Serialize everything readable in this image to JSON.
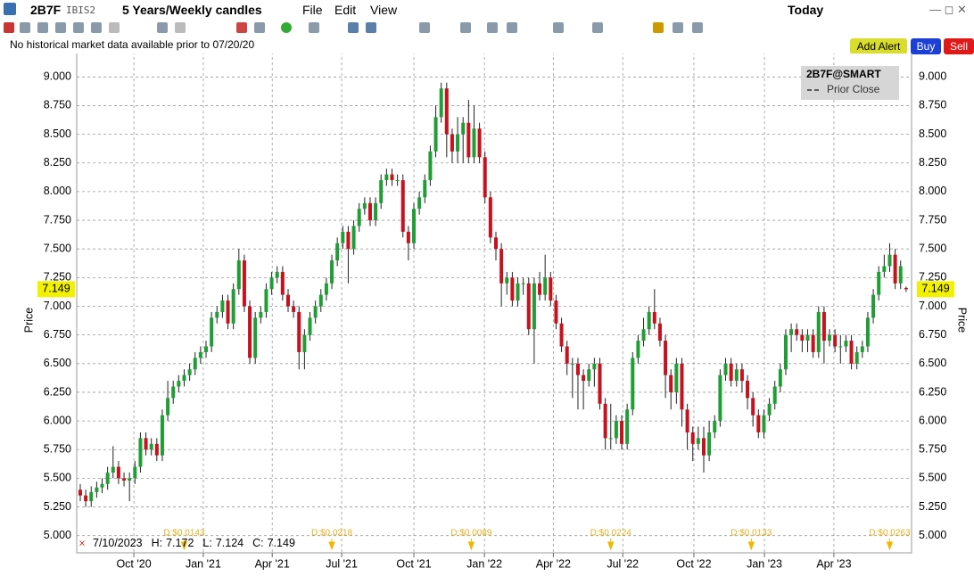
{
  "toolbar": {
    "symbol": "2B7F",
    "exchange": "IBIS2",
    "period": "5 Years/Weekly candles",
    "menus": [
      "File",
      "Edit",
      "View"
    ],
    "range": "Today",
    "buttons": {
      "alert": "Add Alert",
      "buy": "Buy",
      "sell": "Sell"
    }
  },
  "notice": "No historical market data available prior to 07/20/20",
  "chart_data": {
    "type": "candlestick",
    "y_label": "Price",
    "legend": {
      "series": "2B7F@SMART",
      "prior_close": "Prior Close"
    },
    "info": {
      "date": "7/10/2023",
      "h": "H:",
      "l": "L:",
      "c": "C:"
    },
    "colors": {
      "up": "#1f9e35",
      "down": "#c8101e",
      "wick": "#222222"
    },
    "grid": true,
    "ylim": [
      4.85,
      9.22
    ],
    "yticks": [
      {
        "value": 5,
        "label": "5.000"
      },
      {
        "value": 5.25,
        "label": "5.250"
      },
      {
        "value": 5.5,
        "label": "5.500"
      },
      {
        "value": 5.75,
        "label": "5.750"
      },
      {
        "value": 6,
        "label": "6.000"
      },
      {
        "value": 6.25,
        "label": "6.250"
      },
      {
        "value": 6.5,
        "label": "6.500"
      },
      {
        "value": 6.75,
        "label": "6.750"
      },
      {
        "value": 7,
        "label": "7.000"
      },
      {
        "value": 7.25,
        "label": "7.250"
      },
      {
        "value": 7.5,
        "label": "7.500"
      },
      {
        "value": 7.75,
        "label": "7.750"
      },
      {
        "value": 8,
        "label": "8.000"
      },
      {
        "value": 8.25,
        "label": "8.250"
      },
      {
        "value": 8.5,
        "label": "8.500"
      },
      {
        "value": 8.75,
        "label": "8.750"
      },
      {
        "value": 9,
        "label": "9.000"
      }
    ],
    "xlim": [
      -0.65,
      152
    ],
    "xticks": [
      {
        "value": 9.8,
        "label": "Oct '20"
      },
      {
        "value": 22.5,
        "label": "Jan '21"
      },
      {
        "value": 35.1,
        "label": "Apr '21"
      },
      {
        "value": 47.8,
        "label": "Jul '21"
      },
      {
        "value": 61,
        "label": "Oct '21"
      },
      {
        "value": 73.9,
        "label": "Jan '22"
      },
      {
        "value": 86.5,
        "label": "Apr '22"
      },
      {
        "value": 99.2,
        "label": "Jul '22"
      },
      {
        "value": 112.2,
        "label": "Oct '22"
      },
      {
        "value": 125.1,
        "label": "Jan '23"
      },
      {
        "value": 137.8,
        "label": "Apr '23"
      }
    ],
    "dividends": [
      {
        "x": 19,
        "label": "D:$0.0143"
      },
      {
        "x": 46,
        "label": "D:$0.0218"
      },
      {
        "x": 71.5,
        "label": "D:$0.0089"
      },
      {
        "x": 97,
        "label": "D:$0.0224"
      },
      {
        "x": 122.7,
        "label": "D:$0.0133"
      },
      {
        "x": 148,
        "label": "D:$0.0263"
      }
    ],
    "open": [
      5.4,
      5.35,
      5.3,
      5.38,
      5.42,
      5.45,
      5.55,
      5.6,
      5.5,
      5.48,
      5.5,
      5.6,
      5.85,
      5.75,
      5.8,
      5.7,
      6.05,
      6.2,
      6.3,
      6.35,
      6.4,
      6.45,
      6.55,
      6.6,
      6.65,
      6.9,
      6.95,
      7.05,
      6.85,
      7.15,
      7.4,
      7.0,
      6.55,
      6.9,
      6.95,
      7.15,
      7.25,
      7.3,
      7.1,
      7.0,
      6.95,
      6.6,
      6.75,
      6.9,
      7.0,
      7.1,
      7.2,
      7.4,
      7.55,
      7.65,
      7.5,
      7.7,
      7.85,
      7.9,
      7.75,
      7.9,
      8.1,
      8.15,
      8.1,
      8.1,
      7.65,
      7.55,
      7.85,
      7.95,
      8.1,
      8.35,
      8.65,
      8.9,
      8.5,
      8.35,
      8.5,
      8.6,
      8.3,
      8.55,
      8.3,
      7.95,
      7.6,
      7.5,
      7.2,
      7.25,
      7.05,
      7.2,
      7.2,
      6.8,
      7.2,
      7.1,
      7.25,
      7.05,
      6.85,
      6.65,
      6.5,
      6.5,
      6.4,
      6.35,
      6.45,
      6.5,
      6.15,
      5.85,
      5.85,
      6.0,
      5.8,
      6.1,
      6.55,
      6.7,
      6.8,
      6.95,
      6.85,
      6.7,
      6.4,
      6.25,
      6.5,
      6.1,
      5.9,
      5.8,
      5.85,
      5.7,
      5.9,
      6.0,
      6.4,
      6.5,
      6.35,
      6.45,
      6.35,
      6.2,
      6.05,
      5.9,
      6.05,
      6.15,
      6.3,
      6.45,
      6.75,
      6.8,
      6.75,
      6.7,
      6.75,
      6.6,
      6.95,
      6.7,
      6.75,
      6.65,
      6.65,
      6.7,
      6.5,
      6.6,
      6.65,
      6.9,
      7.1,
      7.3,
      7.35,
      7.45,
      7.2,
      7.16
    ],
    "high": [
      5.45,
      5.4,
      5.43,
      5.47,
      5.5,
      5.6,
      5.78,
      5.65,
      5.55,
      5.55,
      5.65,
      5.9,
      5.9,
      5.85,
      5.85,
      6.1,
      6.35,
      6.35,
      6.4,
      6.45,
      6.5,
      6.6,
      6.65,
      6.7,
      6.95,
      7.0,
      7.1,
      7.1,
      7.2,
      7.5,
      7.45,
      7.05,
      6.95,
      7.0,
      7.2,
      7.3,
      7.35,
      7.35,
      7.15,
      7.05,
      7.0,
      6.8,
      6.95,
      7.05,
      7.15,
      7.25,
      7.45,
      7.6,
      7.7,
      7.7,
      7.75,
      7.9,
      7.95,
      7.95,
      7.95,
      8.15,
      8.2,
      8.2,
      8.15,
      8.15,
      7.7,
      7.9,
      8.0,
      8.15,
      8.4,
      8.75,
      8.95,
      8.95,
      8.55,
      8.65,
      8.65,
      8.8,
      8.75,
      8.6,
      8.35,
      8.0,
      7.65,
      7.55,
      7.3,
      7.3,
      7.25,
      7.25,
      7.25,
      7.25,
      7.3,
      7.45,
      7.3,
      7.1,
      6.9,
      6.7,
      6.55,
      6.55,
      6.45,
      6.5,
      6.55,
      6.55,
      6.2,
      6.15,
      6.05,
      6.05,
      6.15,
      6.6,
      6.75,
      6.9,
      7.0,
      7.15,
      6.9,
      6.75,
      6.45,
      6.55,
      6.55,
      6.15,
      5.95,
      5.95,
      5.95,
      6.0,
      6.05,
      6.45,
      6.55,
      6.55,
      6.5,
      6.5,
      6.4,
      6.25,
      6.1,
      6.1,
      6.2,
      6.35,
      6.5,
      6.8,
      6.85,
      6.85,
      6.8,
      6.8,
      6.8,
      7.0,
      7.0,
      6.8,
      6.8,
      6.75,
      6.75,
      6.75,
      6.65,
      6.7,
      6.95,
      7.15,
      7.35,
      7.45,
      7.55,
      7.5,
      7.4,
      7.172
    ],
    "low": [
      5.3,
      5.25,
      5.25,
      5.33,
      5.37,
      5.4,
      5.5,
      5.45,
      5.43,
      5.3,
      5.45,
      5.55,
      5.7,
      5.7,
      5.65,
      5.65,
      6.0,
      6.15,
      6.25,
      6.3,
      6.35,
      6.4,
      6.5,
      6.55,
      6.6,
      6.85,
      6.9,
      6.8,
      6.8,
      7.1,
      6.95,
      6.5,
      6.5,
      6.85,
      6.9,
      7.1,
      7.2,
      7.05,
      6.95,
      6.9,
      6.45,
      6.45,
      6.7,
      6.85,
      6.95,
      7.05,
      7.15,
      7.35,
      7.5,
      7.2,
      7.45,
      7.65,
      7.8,
      7.7,
      7.7,
      7.85,
      8.05,
      8.05,
      8.05,
      7.6,
      7.4,
      7.5,
      7.8,
      7.9,
      8.05,
      8.3,
      8.6,
      8.3,
      8.25,
      8.25,
      8.25,
      8.25,
      8.25,
      8.25,
      7.9,
      7.55,
      7.4,
      7.0,
      7.1,
      7.0,
      7.0,
      7.1,
      6.75,
      6.5,
      7.05,
      7.05,
      7.0,
      6.8,
      6.6,
      6.4,
      6.2,
      6.1,
      6.1,
      6.3,
      6.3,
      6.1,
      5.75,
      5.75,
      5.8,
      5.75,
      5.75,
      6.05,
      6.5,
      6.65,
      6.75,
      6.8,
      6.65,
      6.2,
      6.1,
      6.15,
      5.95,
      5.75,
      5.65,
      5.75,
      5.55,
      5.65,
      5.85,
      5.95,
      6.35,
      6.3,
      6.3,
      6.25,
      6.1,
      5.95,
      5.85,
      5.85,
      6.0,
      6.1,
      6.25,
      6.4,
      6.6,
      6.7,
      6.6,
      6.6,
      6.55,
      6.55,
      6.5,
      6.65,
      6.6,
      6.5,
      6.6,
      6.45,
      6.45,
      6.55,
      6.6,
      6.85,
      7.05,
      7.25,
      7.3,
      7.15,
      7.15,
      7.124
    ],
    "close": [
      5.35,
      5.3,
      5.38,
      5.42,
      5.45,
      5.55,
      5.6,
      5.5,
      5.48,
      5.5,
      5.6,
      5.85,
      5.75,
      5.8,
      5.7,
      6.05,
      6.2,
      6.3,
      6.35,
      6.4,
      6.45,
      6.55,
      6.6,
      6.65,
      6.9,
      6.95,
      7.05,
      6.85,
      7.15,
      7.4,
      7.0,
      6.55,
      6.9,
      6.95,
      7.15,
      7.25,
      7.3,
      7.1,
      7.0,
      6.95,
      6.6,
      6.75,
      6.9,
      7.0,
      7.1,
      7.2,
      7.4,
      7.55,
      7.65,
      7.5,
      7.7,
      7.85,
      7.9,
      7.75,
      7.9,
      8.1,
      8.15,
      8.1,
      8.1,
      7.65,
      7.55,
      7.85,
      7.95,
      8.1,
      8.35,
      8.65,
      8.9,
      8.5,
      8.35,
      8.5,
      8.6,
      8.3,
      8.55,
      8.3,
      7.95,
      7.6,
      7.5,
      7.2,
      7.25,
      7.05,
      7.2,
      7.2,
      6.8,
      7.2,
      7.1,
      7.25,
      7.05,
      6.85,
      6.65,
      6.5,
      6.5,
      6.4,
      6.35,
      6.45,
      6.5,
      6.15,
      5.85,
      5.85,
      6.0,
      5.8,
      6.1,
      6.55,
      6.7,
      6.8,
      6.95,
      6.85,
      6.7,
      6.4,
      6.25,
      6.5,
      6.1,
      5.9,
      5.8,
      5.85,
      5.7,
      5.9,
      6.0,
      6.4,
      6.5,
      6.35,
      6.45,
      6.35,
      6.2,
      6.05,
      5.9,
      6.05,
      6.15,
      6.3,
      6.45,
      6.75,
      6.8,
      6.75,
      6.7,
      6.75,
      6.6,
      6.95,
      6.7,
      6.75,
      6.65,
      6.65,
      6.7,
      6.5,
      6.6,
      6.65,
      6.9,
      7.1,
      7.3,
      7.35,
      7.45,
      7.2,
      7.35,
      7.149
    ]
  }
}
